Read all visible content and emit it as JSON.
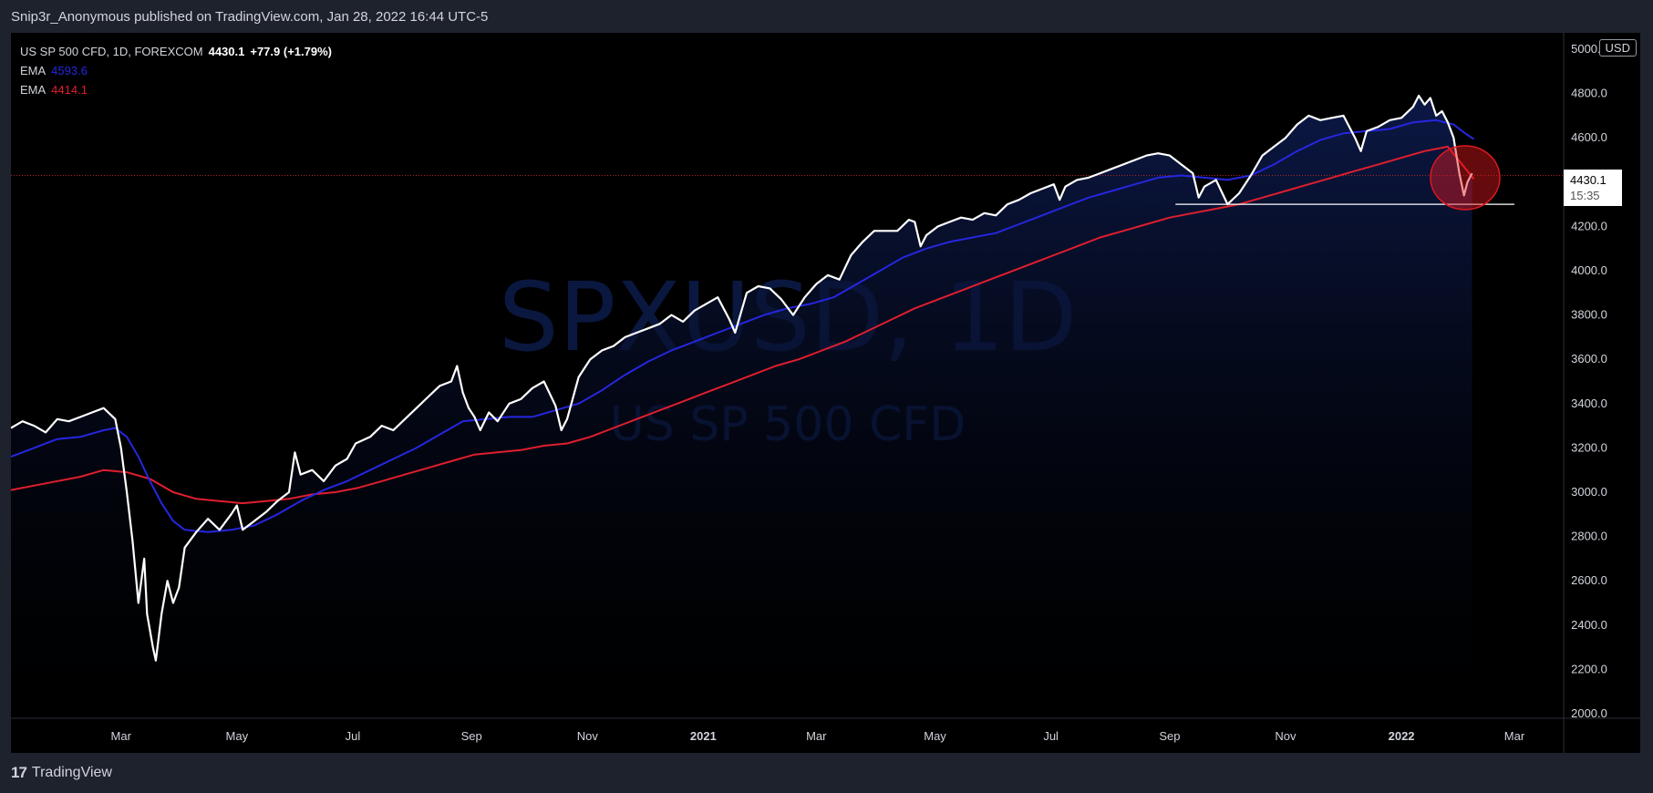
{
  "header": {
    "publisher": "Snip3r_Anonymous published on TradingView.com, Jan 28, 2022 16:44 UTC-5"
  },
  "legend": {
    "symbol": "US SP 500 CFD, 1D, FOREXCOM",
    "price": "4430.1",
    "change": "+77.9 (+1.79%)",
    "ema_fast_label": "EMA",
    "ema_fast_value": "4593.6",
    "ema_slow_label": "EMA",
    "ema_slow_value": "4414.1"
  },
  "watermark": {
    "ticker": "SPXUSD, 1D",
    "name": "US SP 500 CFD"
  },
  "currency": "USD",
  "price_tag": {
    "price": "4430.1",
    "countdown": "15:35"
  },
  "footer": {
    "brand": "TradingView",
    "logo": "17"
  },
  "colors": {
    "background": "#000000",
    "price_line": "#ffffff",
    "ema_fast": "#2626e0",
    "ema_slow": "#e01e2e",
    "current_price_dotted": "#b22222",
    "highlight_circle": "#e0191f"
  },
  "chart_data": {
    "type": "line",
    "y_range": [
      2000,
      5000
    ],
    "y_ticks": [
      "2000.0",
      "2200.0",
      "2400.0",
      "2600.0",
      "2800.0",
      "3000.0",
      "3200.0",
      "3400.0",
      "3600.0",
      "3800.0",
      "4000.0",
      "4200.0",
      "4400.0",
      "4600.0",
      "4800.0",
      "5000.0"
    ],
    "x_ticks": [
      {
        "label": "Mar",
        "t": 1.9,
        "bold": false
      },
      {
        "label": "May",
        "t": 3.9,
        "bold": false
      },
      {
        "label": "Jul",
        "t": 5.9,
        "bold": false
      },
      {
        "label": "Sep",
        "t": 7.95,
        "bold": false
      },
      {
        "label": "Nov",
        "t": 9.95,
        "bold": false
      },
      {
        "label": "2021",
        "t": 11.95,
        "bold": true
      },
      {
        "label": "Mar",
        "t": 13.9,
        "bold": false
      },
      {
        "label": "May",
        "t": 15.95,
        "bold": false
      },
      {
        "label": "Jul",
        "t": 17.95,
        "bold": false
      },
      {
        "label": "Sep",
        "t": 20.0,
        "bold": false
      },
      {
        "label": "Nov",
        "t": 22.0,
        "bold": false
      },
      {
        "label": "2022",
        "t": 24.0,
        "bold": true
      },
      {
        "label": "Mar",
        "t": 25.95,
        "bold": false
      }
    ],
    "series": [
      {
        "name": "US SP 500 CFD",
        "role": "price",
        "points": [
          [
            0.0,
            3290
          ],
          [
            0.2,
            3320
          ],
          [
            0.4,
            3300
          ],
          [
            0.6,
            3270
          ],
          [
            0.8,
            3330
          ],
          [
            1.0,
            3320
          ],
          [
            1.2,
            3340
          ],
          [
            1.4,
            3360
          ],
          [
            1.6,
            3380
          ],
          [
            1.8,
            3330
          ],
          [
            1.9,
            3200
          ],
          [
            2.0,
            3000
          ],
          [
            2.1,
            2780
          ],
          [
            2.2,
            2500
          ],
          [
            2.3,
            2700
          ],
          [
            2.35,
            2450
          ],
          [
            2.45,
            2300
          ],
          [
            2.5,
            2240
          ],
          [
            2.6,
            2450
          ],
          [
            2.7,
            2600
          ],
          [
            2.8,
            2500
          ],
          [
            2.9,
            2570
          ],
          [
            3.0,
            2750
          ],
          [
            3.2,
            2820
          ],
          [
            3.4,
            2880
          ],
          [
            3.6,
            2830
          ],
          [
            3.8,
            2900
          ],
          [
            3.9,
            2940
          ],
          [
            4.0,
            2830
          ],
          [
            4.2,
            2870
          ],
          [
            4.4,
            2910
          ],
          [
            4.6,
            2960
          ],
          [
            4.8,
            3000
          ],
          [
            4.9,
            3180
          ],
          [
            5.0,
            3080
          ],
          [
            5.2,
            3100
          ],
          [
            5.4,
            3050
          ],
          [
            5.6,
            3120
          ],
          [
            5.8,
            3150
          ],
          [
            5.95,
            3220
          ],
          [
            6.2,
            3250
          ],
          [
            6.4,
            3300
          ],
          [
            6.6,
            3280
          ],
          [
            6.8,
            3330
          ],
          [
            7.0,
            3380
          ],
          [
            7.2,
            3430
          ],
          [
            7.4,
            3480
          ],
          [
            7.6,
            3500
          ],
          [
            7.7,
            3570
          ],
          [
            7.8,
            3450
          ],
          [
            7.9,
            3380
          ],
          [
            8.0,
            3340
          ],
          [
            8.1,
            3280
          ],
          [
            8.25,
            3360
          ],
          [
            8.4,
            3320
          ],
          [
            8.6,
            3400
          ],
          [
            8.8,
            3420
          ],
          [
            9.0,
            3470
          ],
          [
            9.2,
            3500
          ],
          [
            9.4,
            3390
          ],
          [
            9.5,
            3280
          ],
          [
            9.6,
            3330
          ],
          [
            9.8,
            3520
          ],
          [
            10.0,
            3600
          ],
          [
            10.2,
            3640
          ],
          [
            10.4,
            3660
          ],
          [
            10.6,
            3700
          ],
          [
            10.8,
            3720
          ],
          [
            11.0,
            3740
          ],
          [
            11.2,
            3760
          ],
          [
            11.4,
            3800
          ],
          [
            11.6,
            3770
          ],
          [
            11.8,
            3820
          ],
          [
            12.0,
            3850
          ],
          [
            12.2,
            3880
          ],
          [
            12.4,
            3780
          ],
          [
            12.5,
            3720
          ],
          [
            12.7,
            3900
          ],
          [
            12.9,
            3930
          ],
          [
            13.1,
            3920
          ],
          [
            13.3,
            3870
          ],
          [
            13.5,
            3800
          ],
          [
            13.7,
            3880
          ],
          [
            13.9,
            3940
          ],
          [
            14.1,
            3980
          ],
          [
            14.3,
            3960
          ],
          [
            14.5,
            4070
          ],
          [
            14.7,
            4130
          ],
          [
            14.9,
            4180
          ],
          [
            15.1,
            4180
          ],
          [
            15.3,
            4180
          ],
          [
            15.5,
            4230
          ],
          [
            15.6,
            4220
          ],
          [
            15.7,
            4110
          ],
          [
            15.8,
            4160
          ],
          [
            16.0,
            4200
          ],
          [
            16.2,
            4220
          ],
          [
            16.4,
            4240
          ],
          [
            16.6,
            4230
          ],
          [
            16.8,
            4260
          ],
          [
            17.0,
            4250
          ],
          [
            17.2,
            4300
          ],
          [
            17.4,
            4320
          ],
          [
            17.6,
            4350
          ],
          [
            17.8,
            4370
          ],
          [
            18.0,
            4390
          ],
          [
            18.1,
            4320
          ],
          [
            18.2,
            4380
          ],
          [
            18.4,
            4410
          ],
          [
            18.6,
            4420
          ],
          [
            18.8,
            4440
          ],
          [
            19.0,
            4460
          ],
          [
            19.2,
            4480
          ],
          [
            19.4,
            4500
          ],
          [
            19.6,
            4520
          ],
          [
            19.8,
            4530
          ],
          [
            20.0,
            4520
          ],
          [
            20.2,
            4480
          ],
          [
            20.4,
            4440
          ],
          [
            20.5,
            4330
          ],
          [
            20.6,
            4380
          ],
          [
            20.8,
            4410
          ],
          [
            21.0,
            4300
          ],
          [
            21.2,
            4350
          ],
          [
            21.4,
            4430
          ],
          [
            21.6,
            4520
          ],
          [
            21.8,
            4560
          ],
          [
            22.0,
            4600
          ],
          [
            22.2,
            4660
          ],
          [
            22.4,
            4700
          ],
          [
            22.6,
            4680
          ],
          [
            22.8,
            4690
          ],
          [
            23.0,
            4700
          ],
          [
            23.2,
            4600
          ],
          [
            23.3,
            4540
          ],
          [
            23.4,
            4630
          ],
          [
            23.6,
            4650
          ],
          [
            23.8,
            4680
          ],
          [
            24.0,
            4690
          ],
          [
            24.2,
            4740
          ],
          [
            24.3,
            4790
          ],
          [
            24.4,
            4750
          ],
          [
            24.5,
            4780
          ],
          [
            24.6,
            4700
          ],
          [
            24.7,
            4720
          ],
          [
            24.8,
            4670
          ],
          [
            24.9,
            4600
          ],
          [
            25.0,
            4440
          ],
          [
            25.08,
            4340
          ],
          [
            25.14,
            4400
          ],
          [
            25.22,
            4440
          ]
        ]
      },
      {
        "name": "EMA",
        "role": "ema_fast",
        "points": [
          [
            0.0,
            3160
          ],
          [
            0.4,
            3200
          ],
          [
            0.8,
            3240
          ],
          [
            1.2,
            3250
          ],
          [
            1.6,
            3280
          ],
          [
            1.8,
            3290
          ],
          [
            2.0,
            3250
          ],
          [
            2.2,
            3160
          ],
          [
            2.4,
            3050
          ],
          [
            2.6,
            2950
          ],
          [
            2.8,
            2870
          ],
          [
            3.0,
            2830
          ],
          [
            3.4,
            2820
          ],
          [
            3.8,
            2830
          ],
          [
            4.2,
            2850
          ],
          [
            4.6,
            2900
          ],
          [
            5.0,
            2960
          ],
          [
            5.4,
            3010
          ],
          [
            5.8,
            3050
          ],
          [
            6.2,
            3100
          ],
          [
            6.6,
            3150
          ],
          [
            7.0,
            3200
          ],
          [
            7.4,
            3260
          ],
          [
            7.8,
            3320
          ],
          [
            8.2,
            3330
          ],
          [
            8.6,
            3340
          ],
          [
            9.0,
            3340
          ],
          [
            9.4,
            3370
          ],
          [
            9.8,
            3400
          ],
          [
            10.2,
            3460
          ],
          [
            10.6,
            3530
          ],
          [
            11.0,
            3590
          ],
          [
            11.4,
            3640
          ],
          [
            11.8,
            3680
          ],
          [
            12.2,
            3720
          ],
          [
            12.6,
            3760
          ],
          [
            13.0,
            3800
          ],
          [
            13.4,
            3830
          ],
          [
            13.8,
            3850
          ],
          [
            14.2,
            3880
          ],
          [
            14.6,
            3940
          ],
          [
            15.0,
            4000
          ],
          [
            15.4,
            4060
          ],
          [
            15.8,
            4100
          ],
          [
            16.2,
            4130
          ],
          [
            16.6,
            4150
          ],
          [
            17.0,
            4170
          ],
          [
            17.4,
            4210
          ],
          [
            17.8,
            4250
          ],
          [
            18.2,
            4290
          ],
          [
            18.6,
            4330
          ],
          [
            19.0,
            4360
          ],
          [
            19.4,
            4390
          ],
          [
            19.8,
            4420
          ],
          [
            20.2,
            4430
          ],
          [
            20.6,
            4420
          ],
          [
            21.0,
            4410
          ],
          [
            21.4,
            4430
          ],
          [
            21.8,
            4480
          ],
          [
            22.2,
            4540
          ],
          [
            22.6,
            4590
          ],
          [
            23.0,
            4620
          ],
          [
            23.4,
            4630
          ],
          [
            23.8,
            4640
          ],
          [
            24.2,
            4670
          ],
          [
            24.6,
            4680
          ],
          [
            24.9,
            4660
          ],
          [
            25.1,
            4620
          ],
          [
            25.25,
            4594
          ]
        ]
      },
      {
        "name": "EMA",
        "role": "ema_slow",
        "points": [
          [
            0.0,
            3010
          ],
          [
            0.6,
            3040
          ],
          [
            1.2,
            3070
          ],
          [
            1.6,
            3100
          ],
          [
            2.0,
            3090
          ],
          [
            2.4,
            3060
          ],
          [
            2.8,
            3000
          ],
          [
            3.2,
            2970
          ],
          [
            3.6,
            2960
          ],
          [
            4.0,
            2950
          ],
          [
            4.4,
            2960
          ],
          [
            4.8,
            2970
          ],
          [
            5.2,
            2990
          ],
          [
            5.6,
            3000
          ],
          [
            6.0,
            3020
          ],
          [
            6.4,
            3050
          ],
          [
            6.8,
            3080
          ],
          [
            7.2,
            3110
          ],
          [
            7.6,
            3140
          ],
          [
            8.0,
            3170
          ],
          [
            8.4,
            3180
          ],
          [
            8.8,
            3190
          ],
          [
            9.2,
            3210
          ],
          [
            9.6,
            3220
          ],
          [
            10.0,
            3250
          ],
          [
            10.4,
            3290
          ],
          [
            10.8,
            3330
          ],
          [
            11.2,
            3370
          ],
          [
            11.6,
            3410
          ],
          [
            12.0,
            3450
          ],
          [
            12.4,
            3490
          ],
          [
            12.8,
            3530
          ],
          [
            13.2,
            3570
          ],
          [
            13.6,
            3600
          ],
          [
            14.0,
            3640
          ],
          [
            14.4,
            3680
          ],
          [
            14.8,
            3730
          ],
          [
            15.2,
            3780
          ],
          [
            15.6,
            3830
          ],
          [
            16.0,
            3870
          ],
          [
            16.4,
            3910
          ],
          [
            16.8,
            3950
          ],
          [
            17.2,
            3990
          ],
          [
            17.6,
            4030
          ],
          [
            18.0,
            4070
          ],
          [
            18.4,
            4110
          ],
          [
            18.8,
            4150
          ],
          [
            19.2,
            4180
          ],
          [
            19.6,
            4210
          ],
          [
            20.0,
            4240
          ],
          [
            20.4,
            4260
          ],
          [
            20.8,
            4280
          ],
          [
            21.2,
            4300
          ],
          [
            21.6,
            4330
          ],
          [
            22.0,
            4360
          ],
          [
            22.4,
            4390
          ],
          [
            22.8,
            4420
          ],
          [
            23.2,
            4450
          ],
          [
            23.6,
            4480
          ],
          [
            24.0,
            4510
          ],
          [
            24.4,
            4540
          ],
          [
            24.8,
            4560
          ],
          [
            25.25,
            4414
          ]
        ]
      }
    ],
    "current_price": 4430.1,
    "support_level": 4300,
    "support_range": [
      20.1,
      25.95
    ],
    "highlight": {
      "t": 25.1,
      "price": 4420
    }
  }
}
